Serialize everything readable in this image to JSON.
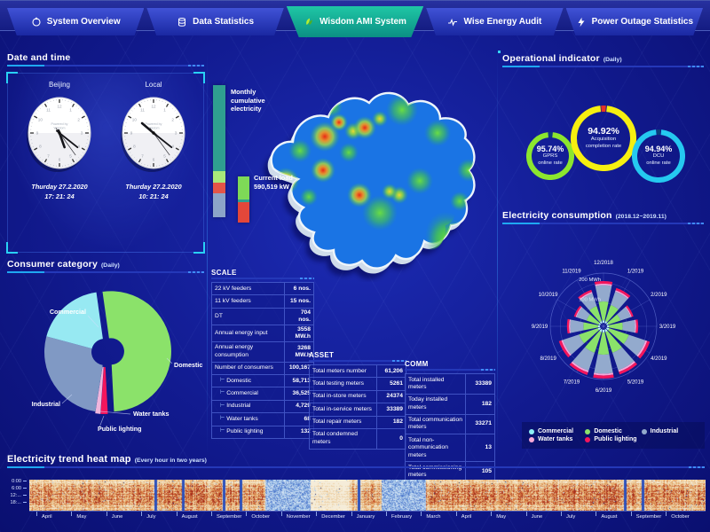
{
  "nav": {
    "tabs": [
      {
        "label": "System Overview",
        "icon": "overview-icon",
        "active": false
      },
      {
        "label": "Data Statistics",
        "icon": "database-icon",
        "active": false
      },
      {
        "label": "Wisdom AMI System",
        "icon": "leaf-logo-icon",
        "active": true
      },
      {
        "label": "Wise Energy Audit",
        "icon": "pulse-icon",
        "active": false
      },
      {
        "label": "Power Outage Statistics",
        "icon": "lightning-icon",
        "active": false
      }
    ]
  },
  "datetime": {
    "title": "Date and time",
    "clocks": [
      {
        "city": "Beijing",
        "brand_line1": "Powered by",
        "brand_line2": "Wisdom",
        "date": "Thurday 27.2.2020",
        "time": "17: 21: 24"
      },
      {
        "city": "Local",
        "brand_line1": "Powered by",
        "brand_line2": "Wisdom",
        "date": "Thurday 27.2.2020",
        "time": "10: 21: 24"
      }
    ]
  },
  "consumer_category": {
    "title": "Consumer category",
    "subtitle": "(Daily)"
  },
  "map_panel": {
    "monthly_label": "Monthly cumulative electricity",
    "current_load_label": "Current load",
    "current_load_value": "590,519 kW"
  },
  "scale_table": {
    "title": "SCALE",
    "rows": [
      {
        "label": "22 kV feeders",
        "value": "6 nos.",
        "indent": false
      },
      {
        "label": "11 kV feeders",
        "value": "15 nos.",
        "indent": false
      },
      {
        "label": "DT",
        "value": "704 nos.",
        "indent": false
      },
      {
        "label": "Annual energy input",
        "value": "3558 MW.h",
        "indent": false
      },
      {
        "label": "Annual energy consumption",
        "value": "3268 MW.h",
        "indent": false
      },
      {
        "label": "Number of consumers",
        "value": "100,167",
        "indent": false
      },
      {
        "label": "Domestic",
        "value": "58,713",
        "indent": true
      },
      {
        "label": "Commercial",
        "value": "36,525",
        "indent": true
      },
      {
        "label": "Industrial",
        "value": "4,729",
        "indent": true
      },
      {
        "label": "Water tanks",
        "value": "68",
        "indent": true
      },
      {
        "label": "Public lighting",
        "value": "132",
        "indent": true
      }
    ]
  },
  "asset_table": {
    "title": "ASSET",
    "rows": [
      {
        "label": "Total meters number",
        "value": "61,206",
        "indent": false
      },
      {
        "label": "Total testing meters",
        "value": "5261",
        "indent": false
      },
      {
        "label": "Total in-store meters",
        "value": "24374",
        "indent": false
      },
      {
        "label": "Total in-service meters",
        "value": "33389",
        "indent": false
      },
      {
        "label": "Total repair meters",
        "value": "182",
        "indent": false
      },
      {
        "label": "Total condemned meters",
        "value": "0",
        "indent": false
      }
    ]
  },
  "comm_table": {
    "title": "COMM",
    "rows": [
      {
        "label": "Total installed meters",
        "value": "33389",
        "indent": false
      },
      {
        "label": "Today installed meters",
        "value": "182",
        "indent": false
      },
      {
        "label": "Total communication meters",
        "value": "33271",
        "indent": false
      },
      {
        "label": "Total non-communication meters",
        "value": "13",
        "indent": false
      },
      {
        "label": "Total commissioning meters",
        "value": "105",
        "indent": false
      }
    ]
  },
  "operational": {
    "title": "Operational indicator",
    "subtitle": "(Daily)",
    "gauges": [
      {
        "value": "95.74%",
        "label_line1": "GPRS",
        "label_line2": "online rate",
        "color": "#8ce62e",
        "notch_color": "#0b3d7a"
      },
      {
        "value": "94.92%",
        "label_line1": "Acquisition",
        "label_line2": "completion rate",
        "color": "#f6ef10",
        "notch_color": "#e63226"
      },
      {
        "value": "94.94%",
        "label_line1": "DCU",
        "label_line2": "online rate",
        "color": "#25c9f0",
        "notch_color": "#0b3d7a"
      }
    ]
  },
  "consumption": {
    "title": "Electricity consumption",
    "subtitle": "(2018.12~2019.11)",
    "radial_labels": [
      "100 MWh",
      "200 MWh"
    ],
    "legend": [
      {
        "label": "Commercial",
        "color": "#8deef5"
      },
      {
        "label": "Domestic",
        "color": "#8be26a"
      },
      {
        "label": "Industrial",
        "color": "#93aacd"
      },
      {
        "label": "Water tanks",
        "color": "#f7a8d8"
      },
      {
        "label": "Public lighting",
        "color": "#f5155c"
      }
    ]
  },
  "heatmap_panel": {
    "title": "Electricity trend heat map",
    "subtitle": "(Every hour in two years)",
    "y_labels": [
      "0:00",
      "6:00",
      "12:...",
      "18:..."
    ],
    "months": [
      "April",
      "May",
      "June",
      "July",
      "August",
      "September",
      "October",
      "November",
      "December",
      "January",
      "February",
      "March",
      "April",
      "May",
      "June",
      "July",
      "August",
      "September",
      "October"
    ]
  },
  "chart_data": [
    {
      "id": "consumer_pie",
      "type": "pie",
      "title": "Consumer category (Daily)",
      "unit": "percent of daily consumption (estimated from arc angles)",
      "labels": [
        "Domestic",
        "Public lighting",
        "Water tanks",
        "Industrial",
        "Commercial"
      ],
      "values": [
        51.4,
        1.9,
        1.4,
        26.7,
        18.6
      ],
      "colors": [
        "#8be26a",
        "#f5155c",
        "#f0b6dc",
        "#8099c4",
        "#97e9f2"
      ],
      "start_angle_deg_from_top": -8,
      "donut_hole_ratio": 0.22
    },
    {
      "id": "consumption_rose",
      "type": "bar",
      "layout": "polar-stacked",
      "title": "Electricity consumption (2018.12~2019.11)",
      "unit": "MWh",
      "radial_axis": {
        "ticks": [
          100,
          200
        ],
        "max": 250
      },
      "categories": [
        "12/2018",
        "1/2019",
        "2/2019",
        "3/2019",
        "4/2019",
        "5/2019",
        "6/2019",
        "7/2019",
        "8/2019",
        "9/2019",
        "10/2019",
        "11/2019"
      ],
      "series": [
        {
          "name": "Commercial",
          "color": "#baf3f8",
          "values": [
            12,
            10,
            8,
            9,
            12,
            13,
            13,
            13,
            12,
            9,
            8,
            10
          ]
        },
        {
          "name": "Domestic",
          "color": "#8be26a",
          "values": [
            95,
            85,
            65,
            70,
            105,
            110,
            112,
            110,
            100,
            75,
            65,
            80
          ]
        },
        {
          "name": "Industrial",
          "color": "#93aacd",
          "values": [
            82,
            72,
            54,
            62,
            88,
            92,
            96,
            95,
            86,
            66,
            52,
            68
          ]
        },
        {
          "name": "Water tanks",
          "color": "#f7a8d8",
          "values": [
            8,
            7,
            5,
            6,
            9,
            9,
            9,
            9,
            8,
            6,
            5,
            7
          ]
        },
        {
          "name": "Public lighting",
          "color": "#f5155c",
          "values": [
            13,
            12,
            9,
            10,
            14,
            14,
            15,
            14,
            13,
            10,
            9,
            11
          ]
        }
      ],
      "legend_position": "bottom"
    },
    {
      "id": "trend_heatmap",
      "type": "heatmap",
      "title": "Electricity trend heat map (Every hour in two years)",
      "x_months": [
        "April",
        "May",
        "June",
        "July",
        "August",
        "September",
        "October",
        "November",
        "December",
        "January",
        "February",
        "March",
        "April",
        "May",
        "June",
        "July",
        "August",
        "September",
        "October"
      ],
      "y_hours_ticks": [
        "0:00",
        "6:00",
        "12:00",
        "18:00"
      ],
      "month_intensity_0to1": [
        0.85,
        0.9,
        0.85,
        0.88,
        0.95,
        0.9,
        0.82,
        0.25,
        0.3,
        0.75,
        0.2,
        0.9,
        0.95,
        0.9,
        0.9,
        0.95,
        1.0,
        0.9,
        0.85
      ],
      "cold_periods": [
        "November-December (year 1)",
        "February (year 2)"
      ],
      "palette_warm_to_cold": [
        "#f5ecd9",
        "#eed3a8",
        "#e3a96b",
        "#d67b42",
        "#c24c28",
        "#a8301c",
        "#9fc2e8",
        "#4f78cc"
      ]
    },
    {
      "id": "monthly_cumulative_bar",
      "type": "bar",
      "layout": "vertical-stacked-gauge",
      "title": "Monthly cumulative electricity",
      "segments": [
        {
          "color": "#2f9f90",
          "pct": 65
        },
        {
          "color": "#a8e87a",
          "pct": 9
        },
        {
          "color": "#e35548",
          "pct": 8
        },
        {
          "color": "#8ca4c8",
          "pct": 18
        }
      ]
    },
    {
      "id": "current_load_bar",
      "type": "bar",
      "layout": "vertical-stacked-gauge",
      "title": "Current load 590,519 kW",
      "segments": [
        {
          "color": "#7ed957",
          "pct": 50
        },
        {
          "color": "#2f9f90",
          "pct": 6
        },
        {
          "color": "#e3473a",
          "pct": 44
        }
      ]
    }
  ]
}
